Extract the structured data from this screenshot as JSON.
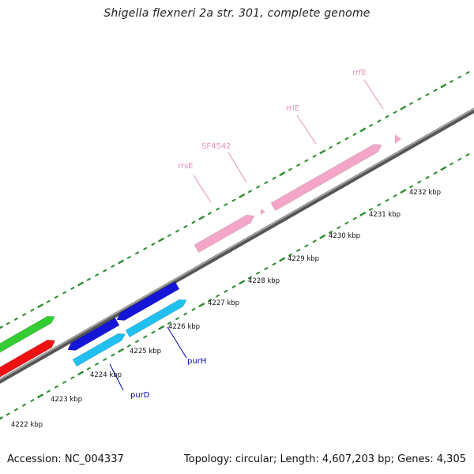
{
  "title": "Shigella flexneri 2a str. 301, complete genome",
  "footer": {
    "accession": "Accession: NC_004337",
    "summary": "Topology: circular; Length: 4,607,203 bp; Genes: 4,305"
  },
  "tick_labels": [
    "4222 kbp",
    "4223 kbp",
    "4224 kbp",
    "4225 kbp",
    "4226 kbp",
    "4227 kbp",
    "4228 kbp",
    "4229 kbp",
    "4230 kbp",
    "4231 kbp",
    "4232 kbp"
  ],
  "gene_labels": {
    "purD": "purD",
    "purH": "purH",
    "rrsE": "rrsE",
    "SF4542": "SF4542",
    "rrlE": "rrlE",
    "rrfE": "rrfE"
  },
  "colors": {
    "backbone": "#888888",
    "tick": "#2e8b2e",
    "rna_feature": "#f4a6c8",
    "rna_label": "#e88fbe",
    "gene_blue": "#1515d8",
    "gene_cyan": "#22c0f0",
    "gene_green": "#33cc33",
    "gene_red": "#ee1111",
    "gene_label": "#0000aa"
  }
}
